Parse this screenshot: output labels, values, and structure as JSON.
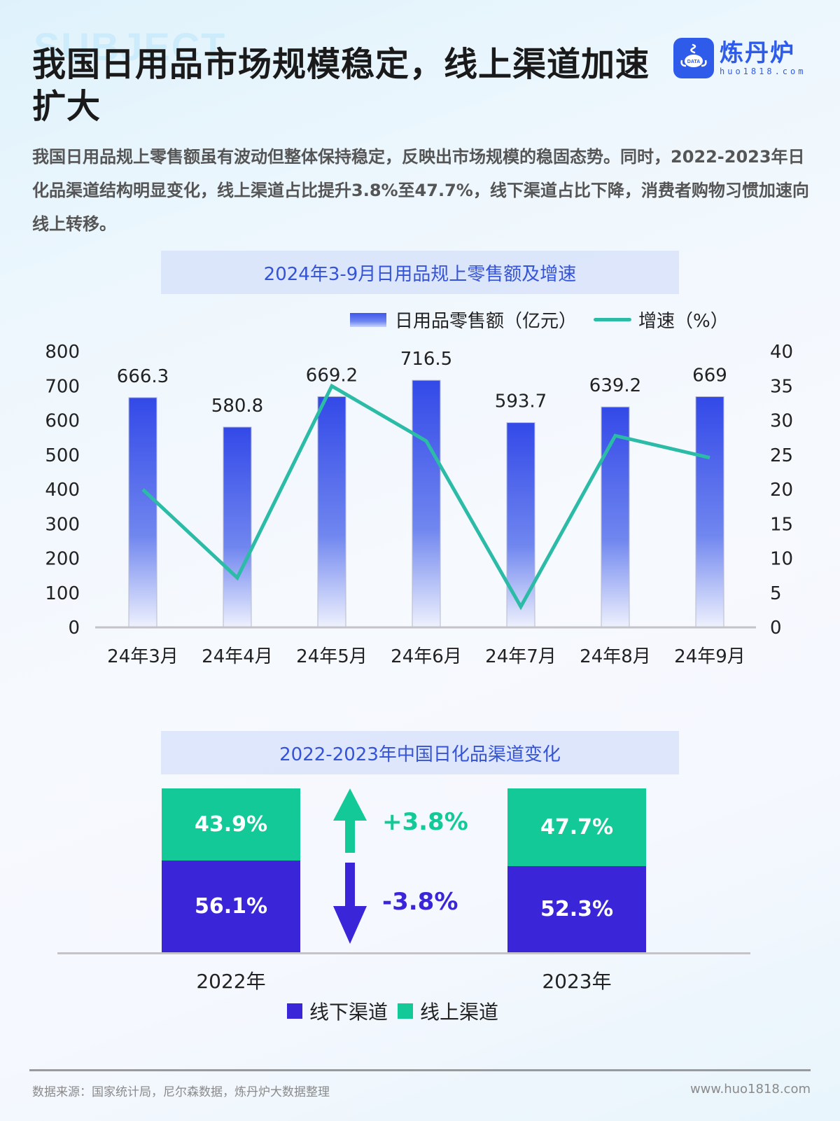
{
  "header": {
    "watermark": "SUBJECT",
    "title": "我国日用品市场规模稳定，线上渠道加速扩大",
    "logo": {
      "name": "炼丹炉",
      "url": "huo1818.com",
      "badge": "DATA"
    }
  },
  "intro": "我国日用品规上零售额虽有波动但整体保持稳定，反映出市场规模的稳固态势。同时，2022-2023年日化品渠道结构明显变化，线上渠道占比提升3.8%至47.7%，线下渠道占比下降，消费者购物习惯加速向线上转移。",
  "colors": {
    "bar_top": "#3349e8",
    "bar_bottom": "#e4e9fc",
    "line": "#2bbba6",
    "online": "#14c998",
    "offline": "#3a26d8",
    "panel_title": "#3553d6"
  },
  "chart_data": [
    {
      "type": "bar",
      "title": "2024年3-9月日用品规上零售额及增速",
      "categories": [
        "24年3月",
        "24年4月",
        "24年5月",
        "24年6月",
        "24年7月",
        "24年8月",
        "24年9月"
      ],
      "series": [
        {
          "name": "日用品零售额（亿元）",
          "type": "bar",
          "axis": "left",
          "values": [
            666.3,
            580.8,
            669.2,
            716.5,
            593.7,
            639.2,
            669
          ]
        },
        {
          "name": "增速（%）",
          "type": "line",
          "axis": "right",
          "values": [
            20.0,
            7.2,
            35.0,
            27.0,
            3.0,
            27.8,
            24.6
          ]
        }
      ],
      "ylim": [
        0,
        800
      ],
      "y_ticks": [
        0,
        100,
        200,
        300,
        400,
        500,
        600,
        700,
        800
      ],
      "y2lim": [
        0,
        40
      ],
      "y2_ticks": [
        0,
        5,
        10,
        15,
        20,
        25,
        30,
        35,
        40
      ],
      "xlabel": "",
      "ylabel": "",
      "legend_position": "top-right",
      "grid": false
    },
    {
      "type": "bar",
      "stacked": true,
      "title": "2022-2023年中国日化品渠道变化",
      "categories": [
        "2022年",
        "2023年"
      ],
      "series": [
        {
          "name": "线下渠道",
          "values": [
            56.1,
            52.3
          ]
        },
        {
          "name": "线上渠道",
          "values": [
            43.9,
            47.7
          ]
        }
      ],
      "annotations": [
        "+3.8%",
        "-3.8%"
      ],
      "legend_position": "bottom",
      "unit": "%"
    }
  ],
  "chart1": {
    "title": "2024年3-9月日用品规上零售额及增速",
    "legend_bar": "日用品零售额（亿元）",
    "legend_line": "增速（%）",
    "bar_labels": [
      "666.3",
      "580.8",
      "669.2",
      "716.5",
      "593.7",
      "639.2",
      "669"
    ]
  },
  "chart2": {
    "title": "2022-2023年中国日化品渠道变化",
    "y2022": {
      "label": "2022年",
      "online": "43.9%",
      "offline": "56.1%"
    },
    "y2023": {
      "label": "2023年",
      "online": "47.7%",
      "offline": "52.3%"
    },
    "up_delta": "+3.8%",
    "down_delta": "-3.8%",
    "legend_offline": "线下渠道",
    "legend_online": "线上渠道"
  },
  "footer": {
    "source": "数据来源：国家统计局，尼尔森数据，炼丹炉大数据整理",
    "site": "www.huo1818.com"
  }
}
